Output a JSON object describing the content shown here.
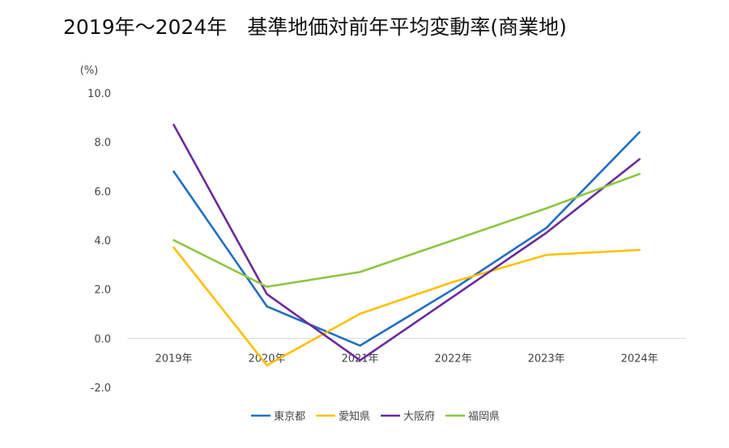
{
  "chart_data": {
    "type": "line",
    "title": "2019年～2024年　基準地価対前年平均変動率(商業地)",
    "unit_label": "(%)",
    "categories": [
      "2019年",
      "2020年",
      "2021年",
      "2022年",
      "2023年",
      "2024年"
    ],
    "ylim": [
      -2.0,
      10.0
    ],
    "yticks": [
      "-2.0",
      "0.0",
      "2.0",
      "4.0",
      "6.0",
      "8.0",
      "10.0"
    ],
    "negative_tick_color": "#e00000",
    "grid": "horizontal-at-zero-only",
    "legend_position": "bottom",
    "series": [
      {
        "name": "東京都",
        "color": "#1f6fbf",
        "values": [
          6.8,
          1.3,
          -0.3,
          2.0,
          4.5,
          8.4
        ]
      },
      {
        "name": "愛知県",
        "color": "#ffc000",
        "values": [
          3.7,
          -1.1,
          1.0,
          2.3,
          3.4,
          3.6
        ]
      },
      {
        "name": "大阪府",
        "color": "#6a2a9a",
        "values": [
          8.7,
          1.8,
          -0.9,
          1.7,
          4.3,
          7.3
        ]
      },
      {
        "name": "福岡県",
        "color": "#8cc63f",
        "values": [
          4.0,
          2.1,
          2.7,
          4.0,
          5.3,
          6.7
        ]
      }
    ]
  }
}
